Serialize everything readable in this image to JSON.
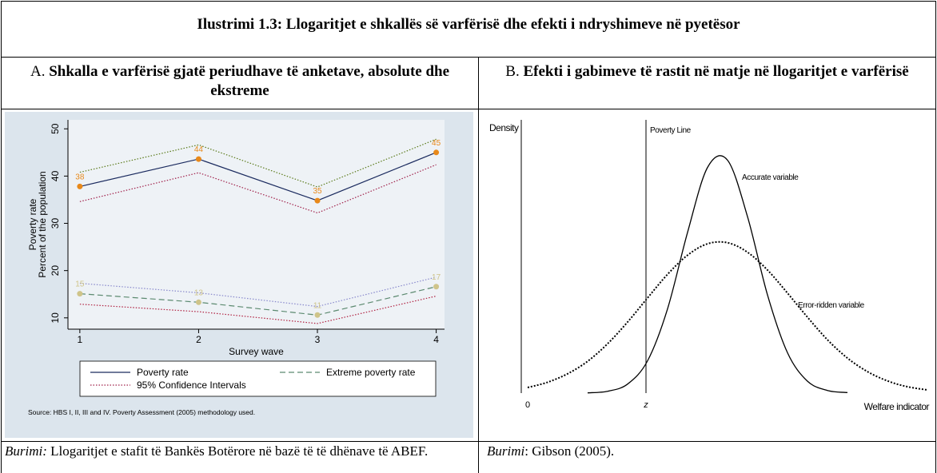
{
  "title": "Ilustrimi 1.3:   Llogaritjet e shkallës së varfërisë dhe efekti i ndryshimeve në pyetësor",
  "panels": [
    {
      "letter": "A.",
      "heading": "Shkalla e varfërisë gjatë periudhave të anketave, absolute dhe ekstreme",
      "source_label": "Burimi:",
      "source": " Llogaritjet e stafit të Bankës Botërore në bazë të të dhënave të ABEF."
    },
    {
      "letter": "B.",
      "heading": "Efekti i gabimeve të rastit në matje në llogaritjet e varfërisë",
      "source_label": "Burimi",
      "source": ": Gibson (2005)."
    }
  ],
  "chart_data": [
    {
      "type": "line",
      "y_label": [
        "Poverty rate",
        "Percent of the population"
      ],
      "x_label": "Survey wave",
      "x": [
        1,
        2,
        3,
        4
      ],
      "xlim": [
        0.9,
        4.07
      ],
      "xticks": [
        1,
        2,
        3,
        4
      ],
      "ylim": [
        7.6,
        51.9
      ],
      "yticks": [
        10,
        20,
        30,
        40,
        50
      ],
      "series": [
        {
          "name": "Poverty rate",
          "color": "#1a2a5e",
          "dash": "solid",
          "marker_color": "#e8891a",
          "values": [
            37.8,
            43.6,
            34.8,
            45.0
          ],
          "value_labels": [
            "38",
            "44",
            "35",
            "45"
          ]
        },
        {
          "name": "Extreme poverty rate",
          "color": "#5c8a70",
          "dash": "dashed",
          "marker_color": "#cfc48a",
          "values": [
            15.1,
            13.3,
            10.6,
            16.6
          ],
          "value_labels": [
            "15",
            "13",
            "11",
            "17"
          ]
        }
      ],
      "confidence_intervals": {
        "name": "95% Confidence Intervals",
        "color": "#a0204a",
        "bands": [
          {
            "color": "#5a7a1a",
            "values": [
              40.8,
              46.6,
              37.7,
              47.8
            ]
          },
          {
            "color": "#a0204a",
            "values": [
              34.6,
              40.7,
              32.2,
              42.4
            ]
          },
          {
            "color": "#8888cc",
            "values": [
              17.3,
              15.3,
              12.4,
              18.6
            ]
          },
          {
            "color": "#b02040",
            "values": [
              12.9,
              11.3,
              8.8,
              14.6
            ]
          }
        ]
      },
      "source": "Source: HBS I, II, III and IV. Poverty Assessment (2005) methodology used."
    },
    {
      "type": "density",
      "y_label": "Density",
      "x_label": "Welfare indicator",
      "xlim": [
        -0.16,
        10
      ],
      "xticks": [
        0,
        {
          "value": 2.96,
          "label": "z"
        }
      ],
      "ylim": [
        0,
        1
      ],
      "x": [
        0,
        0.5,
        1,
        1.5,
        2,
        2.5,
        3,
        3.5,
        4,
        4.5,
        5,
        5.5,
        6,
        6.5,
        7,
        7.5,
        8,
        8.5,
        9,
        9.5,
        10
      ],
      "series": [
        {
          "name": "Accurate variable",
          "color": "#000000",
          "dash": "solid",
          "values": [
            null,
            null,
            null,
            0.001,
            0.007,
            0.034,
            0.122,
            0.318,
            0.606,
            0.851,
            0.878,
            0.665,
            0.37,
            0.152,
            0.045,
            0.01,
            0.002,
            null,
            null,
            null,
            null
          ]
        },
        {
          "name": "Error-ridden variable",
          "color": "#000000",
          "dash": "dotted",
          "values": [
            0.021,
            0.041,
            0.073,
            0.12,
            0.186,
            0.268,
            0.359,
            0.448,
            0.52,
            0.563,
            0.567,
            0.531,
            0.464,
            0.377,
            0.286,
            0.201,
            0.132,
            0.081,
            0.046,
            0.024,
            0.012
          ]
        }
      ],
      "annotations": [
        {
          "text": "Poverty Line",
          "x": 2.96
        }
      ]
    }
  ]
}
